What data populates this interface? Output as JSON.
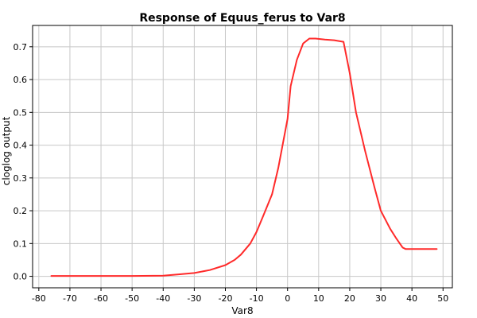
{
  "chart_data": {
    "type": "line",
    "title": "Response of Equus_ferus to Var8",
    "xlabel": "Var8",
    "ylabel": "cloglog output",
    "xlim": [
      -82,
      53
    ],
    "ylim": [
      -0.035,
      0.765
    ],
    "x_ticks": [
      -80,
      -70,
      -60,
      -50,
      -40,
      -30,
      -20,
      -10,
      0,
      10,
      20,
      30,
      40,
      50
    ],
    "y_ticks": [
      0.0,
      0.1,
      0.2,
      0.3,
      0.4,
      0.5,
      0.6,
      0.7
    ],
    "x_tick_labels": [
      "-80",
      "-70",
      "-60",
      "-50",
      "-40",
      "-30",
      "-20",
      "-10",
      "0",
      "10",
      "20",
      "30",
      "40",
      "50"
    ],
    "y_tick_labels": [
      "0.0",
      "0.1",
      "0.2",
      "0.3",
      "0.4",
      "0.5",
      "0.6",
      "0.7"
    ],
    "grid": true,
    "series": [
      {
        "color": "#ff2a2a",
        "x": [
          -76,
          -60,
          -50,
          -40,
          -35,
          -30,
          -25,
          -20,
          -17,
          -15,
          -12,
          -10,
          -8,
          -5,
          -3,
          0,
          1,
          3,
          5,
          7,
          9,
          12,
          15,
          18,
          20,
          22,
          25,
          28,
          30,
          33,
          35,
          37,
          38,
          40,
          45,
          48
        ],
        "y": [
          0.001,
          0.001,
          0.001,
          0.002,
          0.006,
          0.01,
          0.019,
          0.034,
          0.05,
          0.066,
          0.1,
          0.135,
          0.18,
          0.25,
          0.33,
          0.48,
          0.58,
          0.66,
          0.71,
          0.725,
          0.725,
          0.722,
          0.72,
          0.715,
          0.62,
          0.5,
          0.38,
          0.27,
          0.2,
          0.145,
          0.115,
          0.088,
          0.083,
          0.083,
          0.083,
          0.083
        ]
      }
    ]
  }
}
